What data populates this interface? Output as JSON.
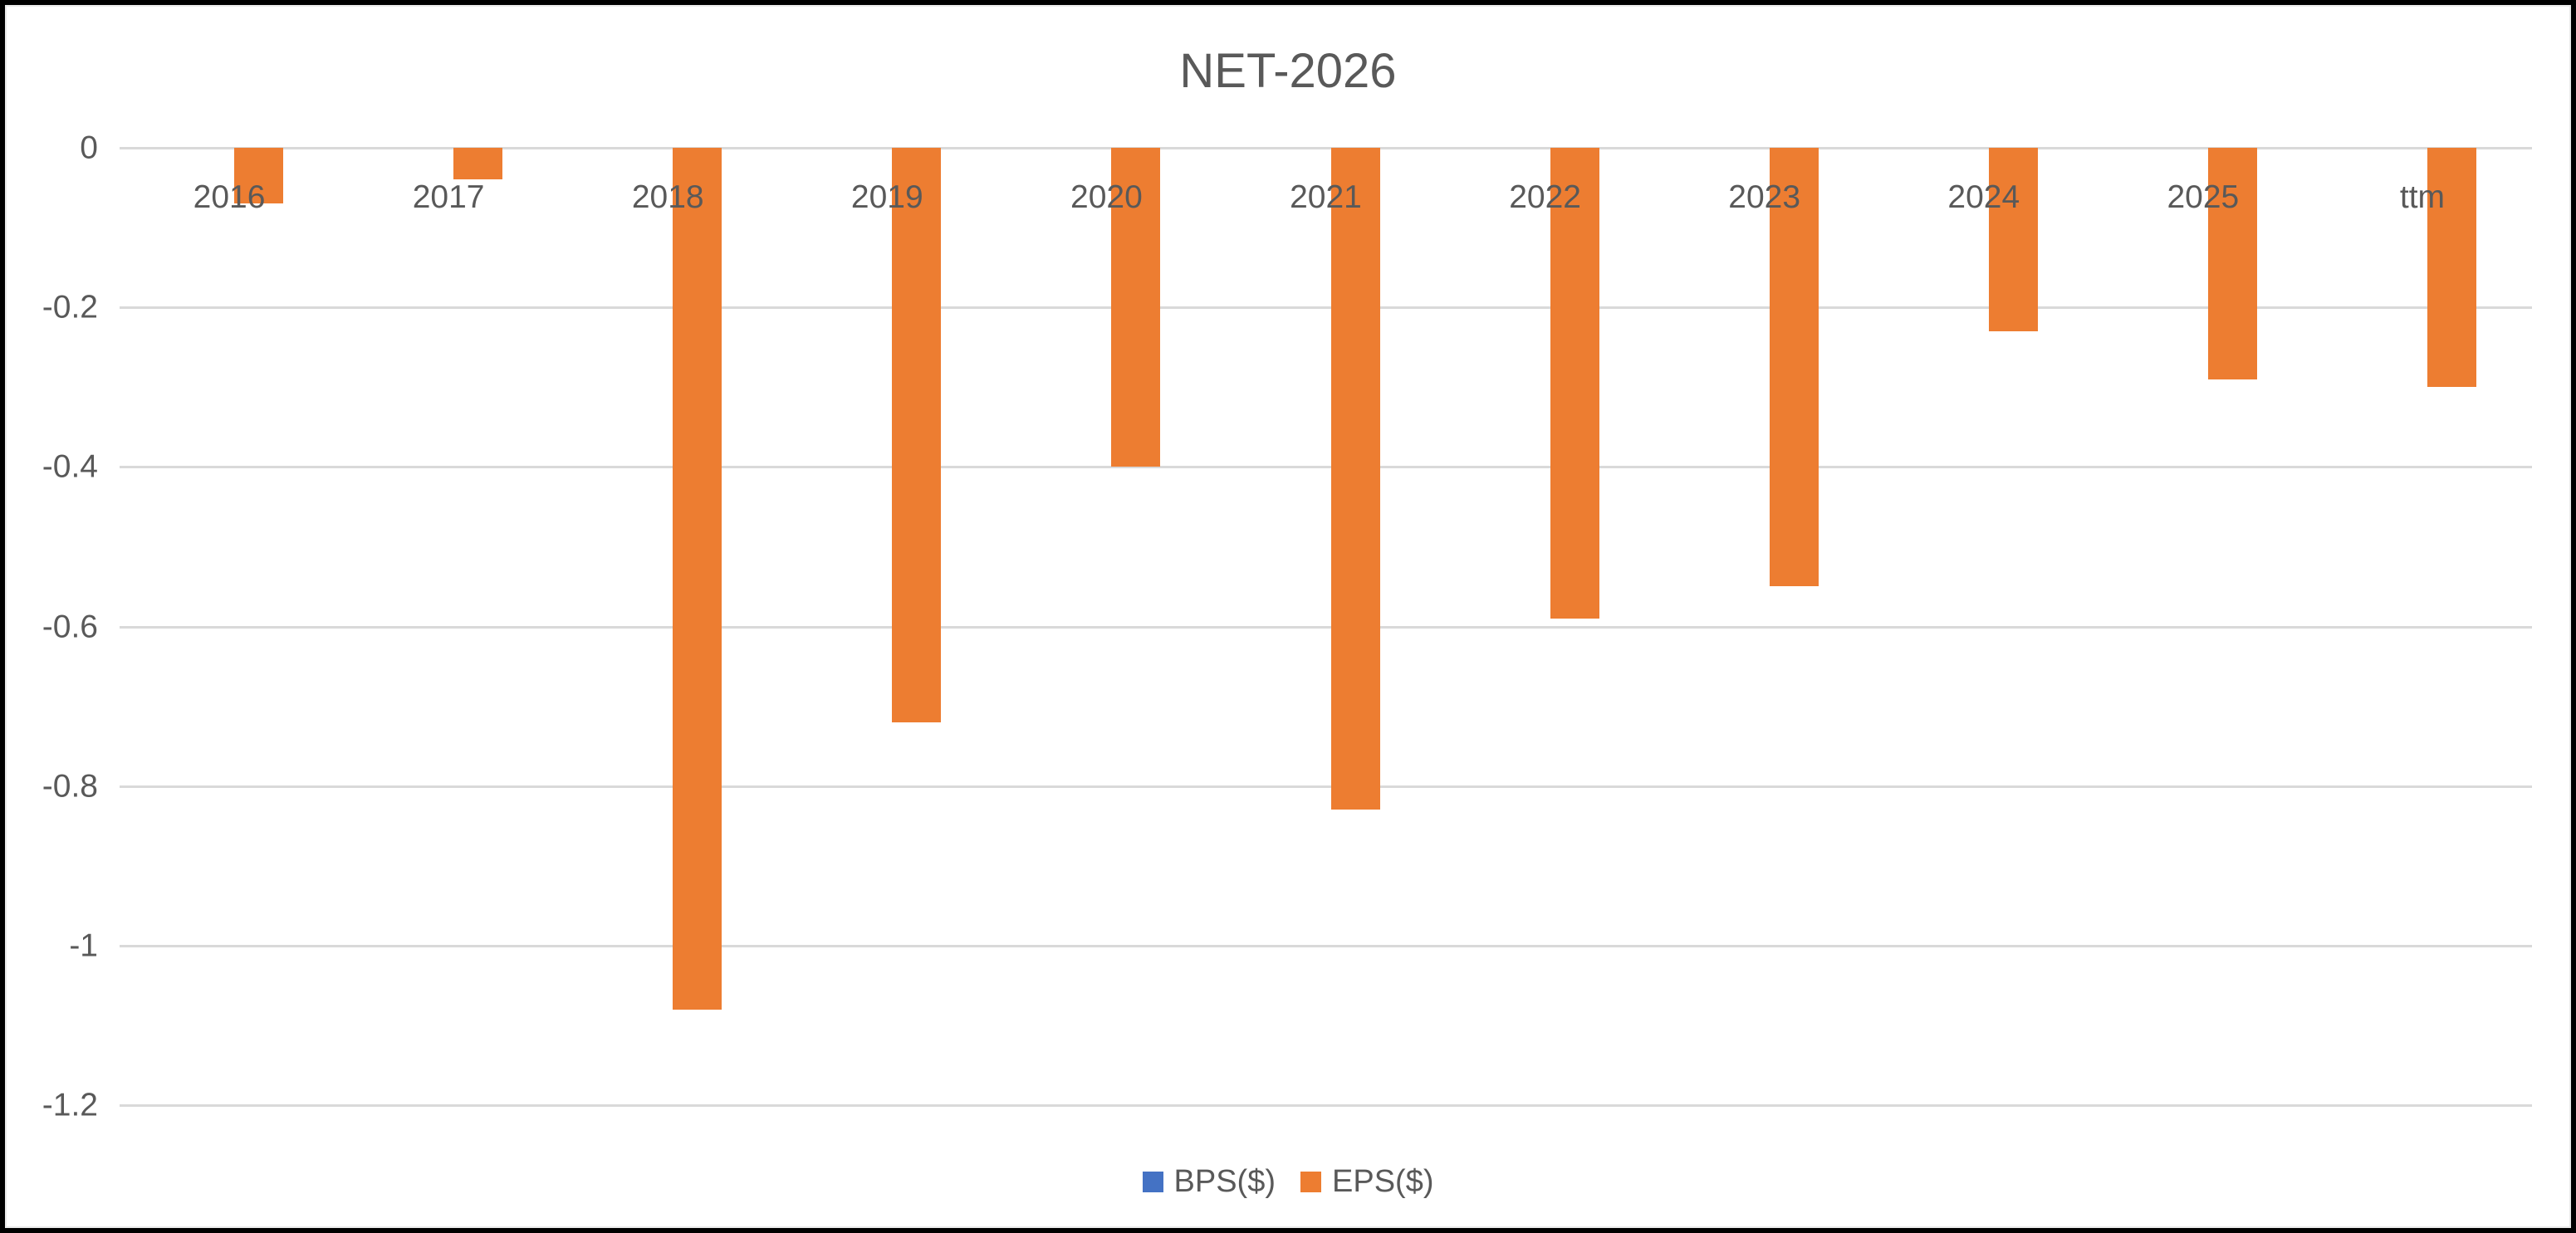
{
  "chart_data": {
    "type": "bar",
    "title": "NET-2026",
    "categories": [
      "2016",
      "2017",
      "2018",
      "2019",
      "2020",
      "2021",
      "2022",
      "2023",
      "2024",
      "2025",
      "ttm"
    ],
    "series": [
      {
        "name": "BPS($)",
        "color": "#4472C4",
        "values": [
          0,
          0,
          0,
          0,
          0,
          0,
          0,
          0,
          0,
          0,
          0
        ]
      },
      {
        "name": "EPS($)",
        "color": "#ED7D31",
        "values": [
          -0.07,
          -0.04,
          -1.08,
          -0.72,
          -0.4,
          -0.83,
          -0.59,
          -0.55,
          -0.23,
          -0.29,
          -0.3
        ]
      }
    ],
    "xlabel": "",
    "ylabel": "",
    "ylim": [
      -1.2,
      0
    ],
    "yticks": [
      0,
      -0.2,
      -0.4,
      -0.6,
      -0.8,
      -1,
      -1.2
    ],
    "ytick_labels": [
      "0",
      "-0.2",
      "-0.4",
      "-0.6",
      "-0.8",
      "-1",
      "-1.2"
    ],
    "grid": true,
    "legend_position": "bottom"
  },
  "legend": {
    "items": [
      {
        "label": "BPS($)",
        "color": "#4472C4"
      },
      {
        "label": "EPS($)",
        "color": "#ED7D31"
      }
    ]
  },
  "colors": {
    "orange": "#ED7D31",
    "blue": "#4472C4",
    "text_gray": "#595959",
    "gridline_gray": "#D9D9D9",
    "border_black": "#000000",
    "background": "#FFFFFF"
  }
}
